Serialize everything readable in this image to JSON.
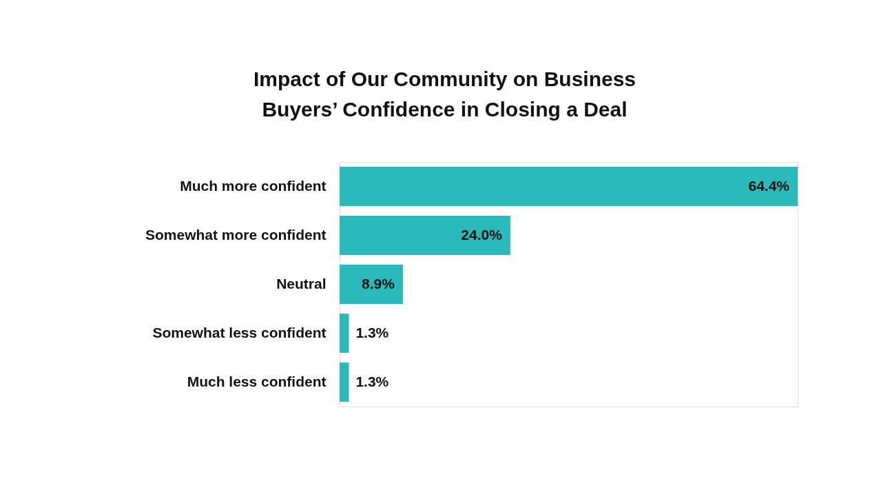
{
  "chart_data": {
    "type": "bar",
    "orientation": "horizontal",
    "title": "Impact of Our Community on Business\nBuyers’ Confidence in Closing a Deal",
    "categories": [
      "Much more confident",
      "Somewhat more confident",
      "Neutral",
      "Somewhat less confident",
      "Much less confident"
    ],
    "values": [
      64.4,
      24.0,
      8.9,
      1.3,
      1.3
    ],
    "value_labels": [
      "64.4%",
      "24.0%",
      "8.9%",
      "1.3%",
      "1.3%"
    ],
    "color": "#2bbabb",
    "grid": false
  }
}
